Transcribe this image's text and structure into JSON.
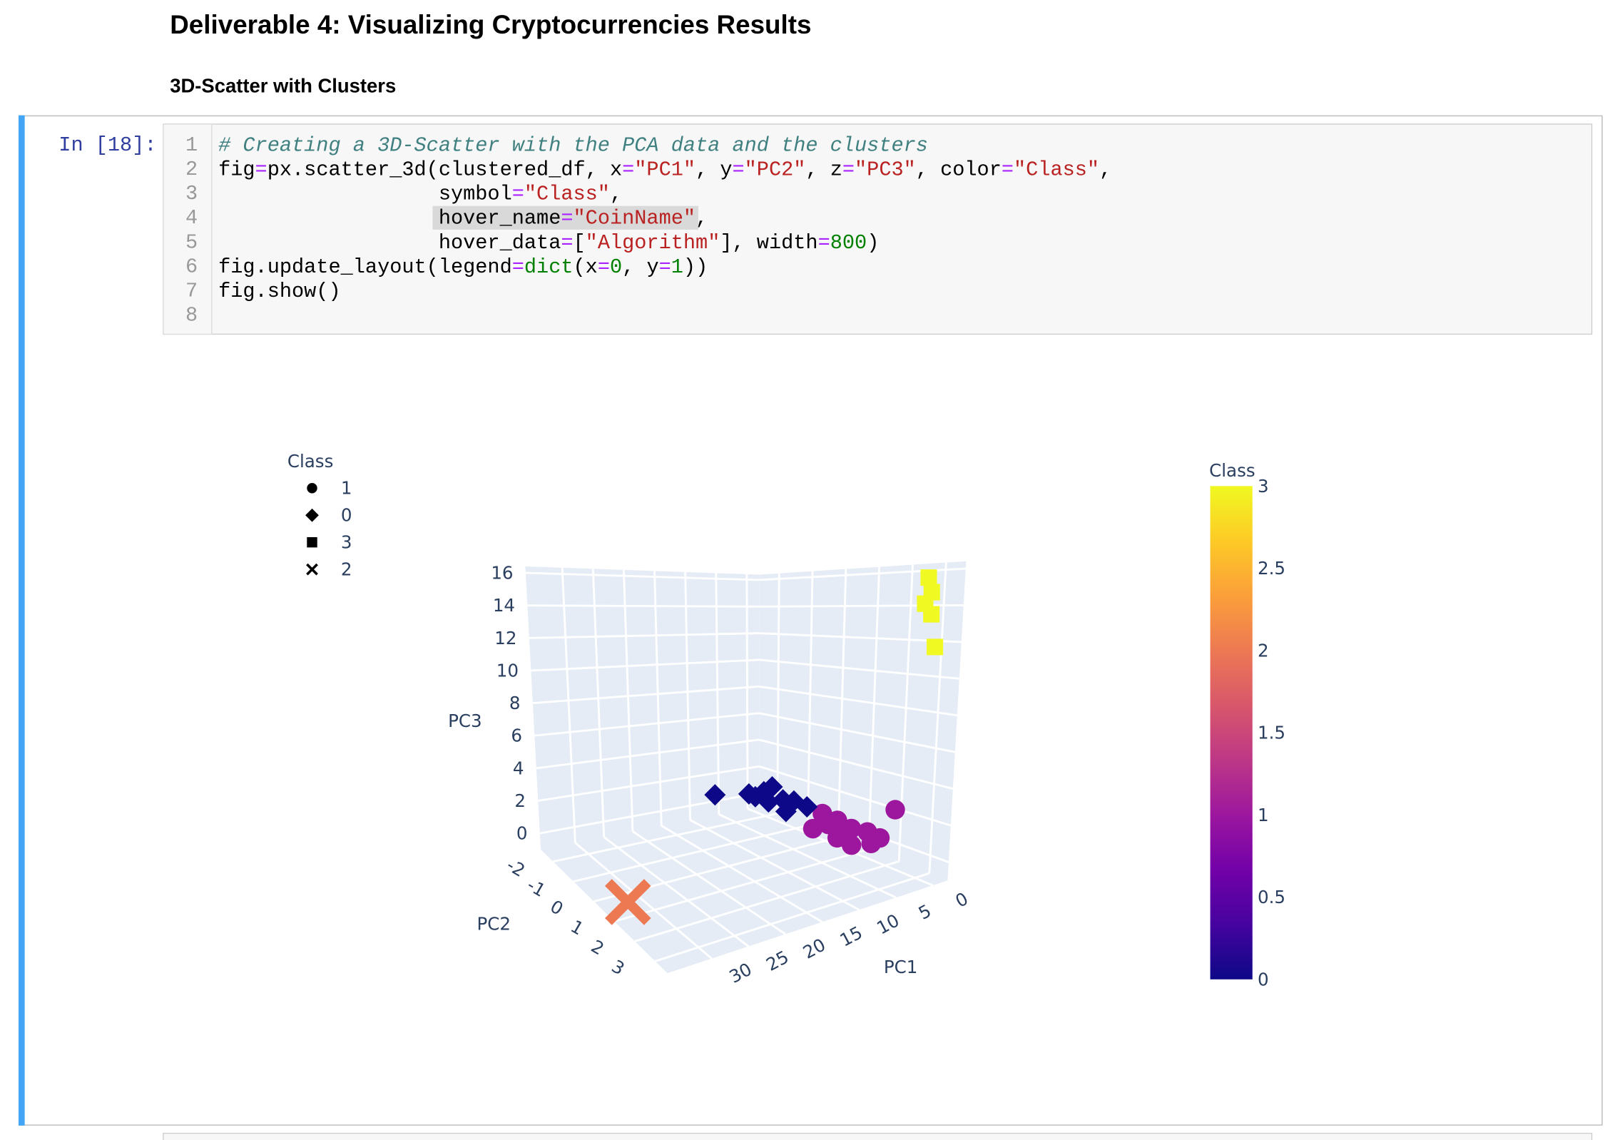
{
  "header": {
    "title": "Deliverable 4: Visualizing Cryptocurrencies Results",
    "subtitle": "3D-Scatter with Clusters"
  },
  "cell": {
    "prompt": "In [18]:",
    "line_numbers": [
      1,
      2,
      3,
      4,
      5,
      6,
      7,
      8
    ],
    "lines": [
      [
        {
          "text": "# Creating a 3D-Scatter with the PCA data and the clusters",
          "color": "#408080",
          "style": "italic"
        }
      ],
      [
        {
          "text": "fig"
        },
        {
          "text": "=",
          "color": "#aa22ff"
        },
        {
          "text": "px.scatter_3d(clustered_df, x"
        },
        {
          "text": "=",
          "color": "#aa22ff"
        },
        {
          "text": "\"PC1\"",
          "color": "#ba2121"
        },
        {
          "text": ", y"
        },
        {
          "text": "=",
          "color": "#aa22ff"
        },
        {
          "text": "\"PC2\"",
          "color": "#ba2121"
        },
        {
          "text": ", z"
        },
        {
          "text": "=",
          "color": "#aa22ff"
        },
        {
          "text": "\"PC3\"",
          "color": "#ba2121"
        },
        {
          "text": ", color"
        },
        {
          "text": "=",
          "color": "#aa22ff"
        },
        {
          "text": "\"Class\"",
          "color": "#ba2121"
        },
        {
          "text": ","
        }
      ],
      [
        {
          "text": "                  symbol"
        },
        {
          "text": "=",
          "color": "#aa22ff"
        },
        {
          "text": "\"Class\"",
          "color": "#ba2121"
        },
        {
          "text": ","
        }
      ],
      [
        {
          "text": "                  hover_name"
        },
        {
          "text": "=",
          "color": "#aa22ff"
        },
        {
          "text": "\"CoinName\"",
          "color": "#ba2121"
        },
        {
          "text": ","
        }
      ],
      [
        {
          "text": "                  hover_data"
        },
        {
          "text": "=",
          "color": "#aa22ff"
        },
        {
          "text": "["
        },
        {
          "text": "\"Algorithm\"",
          "color": "#ba2121"
        },
        {
          "text": "], width"
        },
        {
          "text": "=",
          "color": "#aa22ff"
        },
        {
          "text": "800",
          "color": "#008000"
        },
        {
          "text": ")"
        }
      ],
      [
        {
          "text": "fig.update_layout(legend"
        },
        {
          "text": "=",
          "color": "#aa22ff"
        },
        {
          "text": "dict",
          "color": "#008000"
        },
        {
          "text": "(x"
        },
        {
          "text": "=",
          "color": "#aa22ff"
        },
        {
          "text": "0",
          "color": "#008000"
        },
        {
          "text": ", y"
        },
        {
          "text": "=",
          "color": "#aa22ff"
        },
        {
          "text": "1",
          "color": "#008000"
        },
        {
          "text": "))"
        }
      ],
      [
        {
          "text": "fig.show()"
        }
      ],
      []
    ]
  },
  "chart_data": {
    "type": "scatter3d",
    "legend_title": "Class",
    "xlabel": "PC1",
    "ylabel": "PC2",
    "zlabel": "PC3",
    "xlim": [
      -2,
      36
    ],
    "ylim": [
      -2.6,
      3.6
    ],
    "zlim": [
      -1,
      16.4
    ],
    "xticks": [
      0,
      5,
      10,
      15,
      20,
      25,
      30
    ],
    "yticks": [
      -2,
      -1,
      0,
      1,
      2,
      3
    ],
    "zticks": [
      0,
      2,
      4,
      6,
      8,
      10,
      12,
      14,
      16
    ],
    "series": [
      {
        "name": "1",
        "color": "#9c179e",
        "symbol": "circle",
        "x": [
          1.4,
          5.9,
          1.7,
          2.4,
          1.8,
          2.1,
          2.8,
          6.0,
          4.0,
          5.7,
          3.5
        ],
        "y": [
          0.18,
          0.87,
          0.75,
          1.38,
          1.78,
          2.27,
          2.9,
          2.24,
          2.43,
          1.67,
          0.85
        ],
        "z": [
          1,
          1,
          1,
          1,
          1,
          1,
          3,
          1,
          1,
          1,
          1
        ]
      },
      {
        "name": "0",
        "color": "#0d0887",
        "symbol": "diamond",
        "x": [
          7.8,
          3.6,
          1.3,
          -1.1,
          1.6,
          0.8,
          1.1,
          3.7,
          4.4,
          3.7
        ],
        "y": [
          -2.15,
          -1.84,
          -1.8,
          -2.0,
          -1.1,
          -0.9,
          -0.4,
          -1.15,
          -0.4,
          -1.6
        ],
        "z": [
          1,
          1,
          1,
          1,
          1,
          1,
          1,
          1,
          1,
          1
        ]
      },
      {
        "name": "3",
        "color": "#f0f921",
        "symbol": "square",
        "x": [
          1.5,
          1.0,
          1.8,
          0.9,
          0.2
        ],
        "y": [
          3.3,
          3.3,
          3.3,
          3.3,
          3.3
        ],
        "z": [
          15.6,
          14.8,
          14.2,
          13.6,
          11.8
        ]
      },
      {
        "name": "2",
        "color": "#ed7953",
        "symbol": "x",
        "x": [
          33
        ],
        "y": [
          0.7
        ],
        "z": [
          -0.6
        ]
      }
    ],
    "colorbar": {
      "title": "Class",
      "lim": [
        0,
        3
      ],
      "ticks": [
        0,
        0.5,
        1,
        1.5,
        2,
        2.5,
        3
      ],
      "colorscale": [
        "#0d0887",
        "#46039f",
        "#7201a8",
        "#9c179e",
        "#bd3786",
        "#d8576b",
        "#ed7953",
        "#fb9f3a",
        "#fdca26",
        "#f0f921"
      ]
    }
  }
}
